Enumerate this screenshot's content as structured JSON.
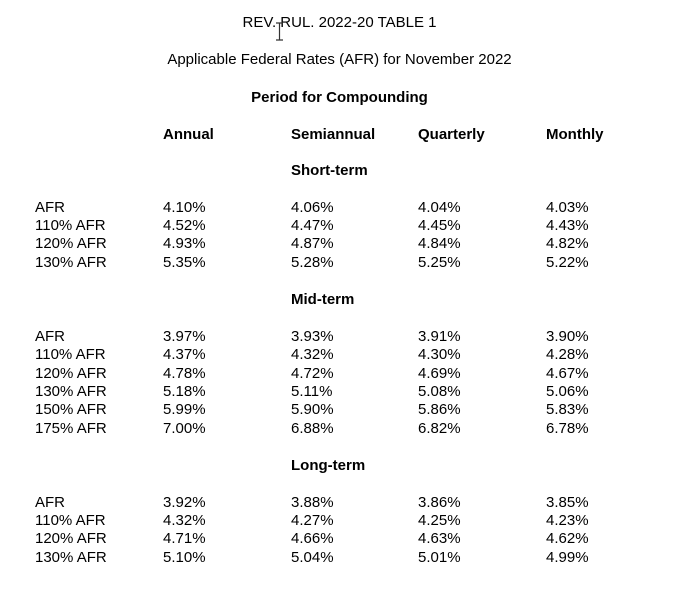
{
  "document": {
    "title": "REV. RUL. 2022-20 TABLE 1",
    "subtitle": "Applicable Federal Rates (AFR) for November 2022",
    "compounding_header": "Period for Compounding",
    "columns": [
      "Annual",
      "Semiannual",
      "Quarterly",
      "Monthly"
    ],
    "sections": [
      {
        "name": "Short-term",
        "rows": [
          {
            "label": "AFR",
            "values": [
              "4.10%",
              "4.06%",
              "4.04%",
              "4.03%"
            ]
          },
          {
            "label": "110% AFR",
            "values": [
              "4.52%",
              "4.47%",
              "4.45%",
              "4.43%"
            ]
          },
          {
            "label": "120% AFR",
            "values": [
              "4.93%",
              "4.87%",
              "4.84%",
              "4.82%"
            ]
          },
          {
            "label": "130% AFR",
            "values": [
              "5.35%",
              "5.28%",
              "5.25%",
              "5.22%"
            ]
          }
        ]
      },
      {
        "name": "Mid-term",
        "rows": [
          {
            "label": "AFR",
            "values": [
              "3.97%",
              "3.93%",
              "3.91%",
              "3.90%"
            ]
          },
          {
            "label": "110% AFR",
            "values": [
              "4.37%",
              "4.32%",
              "4.30%",
              "4.28%"
            ]
          },
          {
            "label": "120% AFR",
            "values": [
              "4.78%",
              "4.72%",
              "4.69%",
              "4.67%"
            ]
          },
          {
            "label": "130% AFR",
            "values": [
              "5.18%",
              "5.11%",
              "5.08%",
              "5.06%"
            ]
          },
          {
            "label": "150% AFR",
            "values": [
              "5.99%",
              "5.90%",
              "5.86%",
              "5.83%"
            ]
          },
          {
            "label": "175% AFR",
            "values": [
              "7.00%",
              "6.88%",
              "6.82%",
              "6.78%"
            ]
          }
        ]
      },
      {
        "name": "Long-term",
        "rows": [
          {
            "label": "AFR",
            "values": [
              "3.92%",
              "3.88%",
              "3.86%",
              "3.85%"
            ]
          },
          {
            "label": "110% AFR",
            "values": [
              "4.32%",
              "4.27%",
              "4.25%",
              "4.23%"
            ]
          },
          {
            "label": "120% AFR",
            "values": [
              "4.71%",
              "4.66%",
              "4.63%",
              "4.62%"
            ]
          },
          {
            "label": "130% AFR",
            "values": [
              "5.10%",
              "5.04%",
              "5.01%",
              "4.99%"
            ]
          }
        ]
      }
    ]
  },
  "icons": {
    "text_cursor": "i-beam-cursor-icon"
  }
}
